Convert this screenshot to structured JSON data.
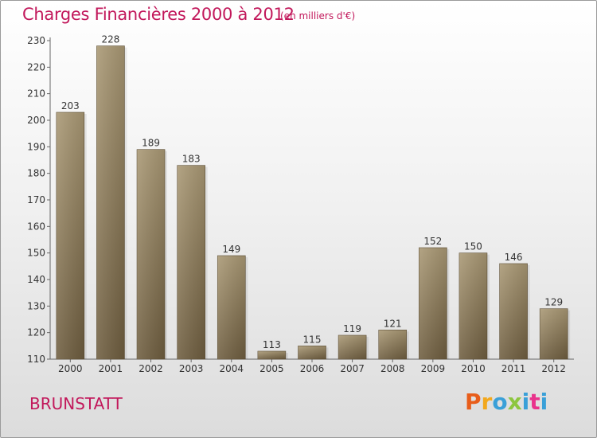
{
  "header": {
    "title": "Charges Financières 2000 à 2012",
    "subtitle": "(en milliers d'€)"
  },
  "footer": {
    "city": "BRUNSTATT",
    "logo": "Proxiti"
  },
  "colors": {
    "title": "#c2185b",
    "bar_top": "#a99874",
    "bar_bottom": "#6e5d3f",
    "logo_letters": [
      "#e85d1a",
      "#f2a81d",
      "#3aa0d8",
      "#8dc63f",
      "#3aa0d8",
      "#e9338c",
      "#3aa0d8"
    ]
  },
  "chart_data": {
    "type": "bar",
    "title": "Charges Financières 2000 à 2012",
    "subtitle": "(en milliers d'€)",
    "categories": [
      "2000",
      "2001",
      "2002",
      "2003",
      "2004",
      "2005",
      "2006",
      "2007",
      "2008",
      "2009",
      "2010",
      "2011",
      "2012"
    ],
    "values": [
      203,
      228,
      189,
      183,
      149,
      113,
      115,
      119,
      121,
      152,
      150,
      146,
      129
    ],
    "ylim": [
      110,
      230
    ],
    "yticks": [
      110,
      120,
      130,
      140,
      150,
      160,
      170,
      180,
      190,
      200,
      210,
      220,
      230
    ],
    "xlabel": "",
    "ylabel": "",
    "grid": false,
    "data_labels": true
  }
}
